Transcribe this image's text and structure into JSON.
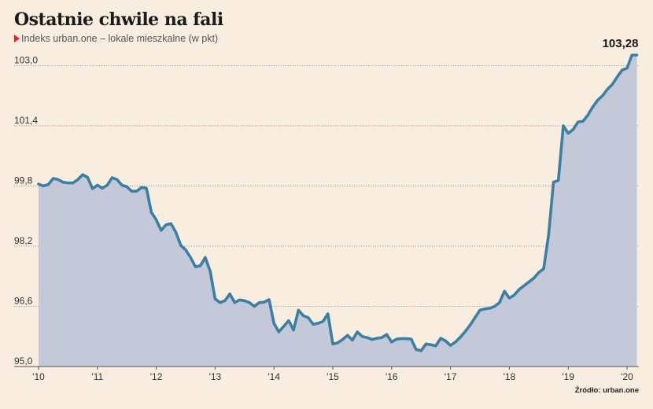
{
  "header": {
    "title": "Ostatnie chwile na fali",
    "subtitle": "Indeks urban.one – lokale mieszkalne (w pkt)"
  },
  "footer": {
    "source": "Źródło: urban.one"
  },
  "colors": {
    "line": "#3b7fa3",
    "area": "#c3c9d8",
    "background": "#f9ede0",
    "marker": "#e4262a"
  },
  "chart_data": {
    "type": "area",
    "title": "Ostatnie chwile na fali",
    "subtitle": "Indeks urban.one – lokale mieszkalne (w pkt)",
    "x_start": "2010-01",
    "x_step": "1 month",
    "ylim": [
      95.0,
      103.28
    ],
    "yticks": [
      95.0,
      96.6,
      98.2,
      99.8,
      101.4,
      103.0
    ],
    "ytick_labels": [
      "95,0",
      "96,6",
      "98,2",
      "99,8",
      "101,4",
      "103,0"
    ],
    "xtick_labels": [
      "'10",
      "'11",
      "'12",
      "'13",
      "'14",
      "'15",
      "'16",
      "'17",
      "'18",
      "'19",
      "'20"
    ],
    "grid": "horizontal dotted",
    "last_value_label": "103,28",
    "series": [
      {
        "values": [
          99.85,
          99.8,
          99.84,
          100.0,
          99.97,
          99.9,
          99.88,
          99.88,
          99.97,
          100.1,
          100.03,
          99.73,
          99.82,
          99.74,
          99.82,
          100.02,
          99.97,
          99.82,
          99.78,
          99.66,
          99.66,
          99.76,
          99.74,
          99.1,
          98.9,
          98.62,
          98.77,
          98.8,
          98.57,
          98.22,
          98.1,
          97.9,
          97.65,
          97.68,
          97.9,
          97.53,
          96.8,
          96.7,
          96.75,
          96.93,
          96.7,
          96.77,
          96.75,
          96.7,
          96.6,
          96.7,
          96.71,
          96.78,
          96.15,
          95.92,
          96.07,
          96.22,
          95.97,
          96.5,
          96.35,
          96.3,
          96.12,
          96.15,
          96.2,
          96.4,
          95.6,
          95.63,
          95.72,
          95.83,
          95.7,
          95.92,
          95.8,
          95.77,
          95.72,
          95.75,
          95.77,
          95.85,
          95.65,
          95.73,
          95.74,
          95.74,
          95.73,
          95.45,
          95.42,
          95.6,
          95.58,
          95.55,
          95.75,
          95.68,
          95.56,
          95.65,
          95.78,
          95.93,
          96.1,
          96.3,
          96.5,
          96.53,
          96.55,
          96.6,
          96.7,
          97.0,
          96.82,
          96.9,
          97.05,
          97.15,
          97.25,
          97.35,
          97.5,
          97.6,
          98.5,
          99.9,
          99.95,
          101.4,
          101.2,
          101.3,
          101.5,
          101.52,
          101.68,
          101.9,
          102.08,
          102.2,
          102.37,
          102.5,
          102.7,
          102.88,
          102.93,
          103.28,
          103.28
        ]
      }
    ]
  }
}
